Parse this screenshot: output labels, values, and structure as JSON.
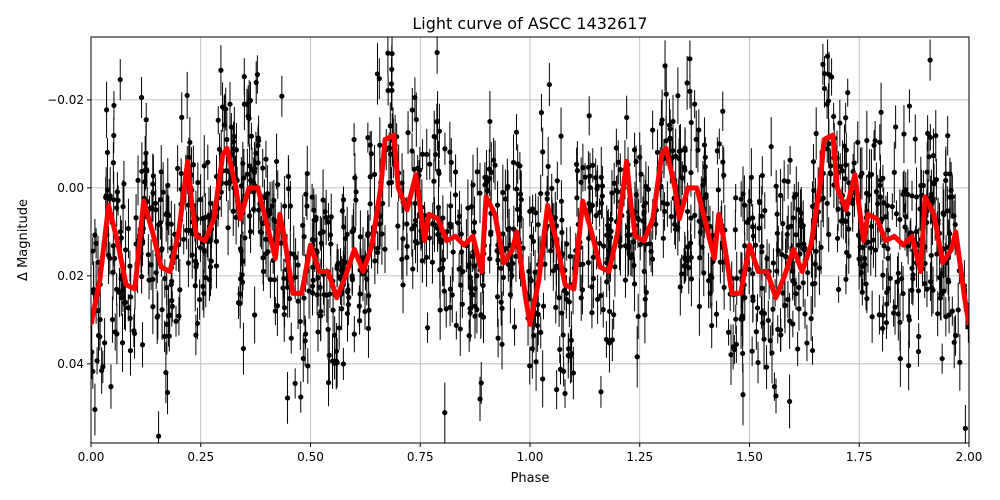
{
  "chart_data": {
    "type": "scatter",
    "title": "Light curve of ASCC 1432617",
    "xlabel": "Phase",
    "ylabel": "Δ Magnitude",
    "xlim": [
      0,
      2
    ],
    "ylim": [
      0.058,
      -0.0343
    ],
    "y_inverted": true,
    "grid": true,
    "xticks": [
      "0.00",
      "0.25",
      "0.50",
      "0.75",
      "1.00",
      "1.25",
      "1.50",
      "1.75",
      "2.00"
    ],
    "xtick_values": [
      0,
      0.25,
      0.5,
      0.75,
      1,
      1.25,
      1.5,
      1.75,
      2
    ],
    "yticks": [
      "−0.02",
      "0.00",
      "0.02",
      "0.04"
    ],
    "ytick_values": [
      -0.02,
      0,
      0.02,
      0.04
    ],
    "colors": {
      "data": "#000000",
      "model": "#ff0000",
      "grid": "#b0b0b0"
    },
    "model_curve": {
      "phase": [
        0,
        0.02,
        0.04,
        0.06,
        0.08,
        0.1,
        0.12,
        0.14,
        0.16,
        0.18,
        0.2,
        0.22,
        0.23,
        0.24,
        0.26,
        0.28,
        0.3,
        0.31,
        0.33,
        0.34,
        0.36,
        0.38,
        0.4,
        0.42,
        0.43,
        0.44,
        0.46,
        0.48,
        0.5,
        0.52,
        0.54,
        0.56,
        0.58,
        0.6,
        0.62,
        0.64,
        0.66,
        0.67,
        0.69,
        0.7,
        0.72,
        0.74,
        0.76,
        0.77,
        0.79,
        0.81,
        0.83,
        0.85,
        0.87,
        0.89,
        0.9,
        0.92,
        0.94,
        0.96,
        0.97,
        0.99,
        1.0
      ],
      "magnitude": [
        0.031,
        0.021,
        0.004,
        0.012,
        0.022,
        0.023,
        0.003,
        0.01,
        0.018,
        0.019,
        0.01,
        -0.006,
        0.004,
        0.011,
        0.012,
        0.007,
        -0.0075,
        -0.009,
        0.0,
        0.007,
        0.0,
        0.0,
        0.008,
        0.016,
        0.006,
        0.011,
        0.024,
        0.024,
        0.013,
        0.019,
        0.019,
        0.025,
        0.02,
        0.014,
        0.019,
        0.013,
        0.0,
        -0.011,
        -0.012,
        0.0,
        0.005,
        -0.003,
        0.012,
        0.006,
        0.007,
        0.012,
        0.011,
        0.013,
        0.011,
        0.019,
        0.002,
        0.006,
        0.017,
        0.014,
        0.01,
        0.025,
        0.031
      ],
      "period_repeats": 2
    },
    "data_scatter": 0.012
  }
}
